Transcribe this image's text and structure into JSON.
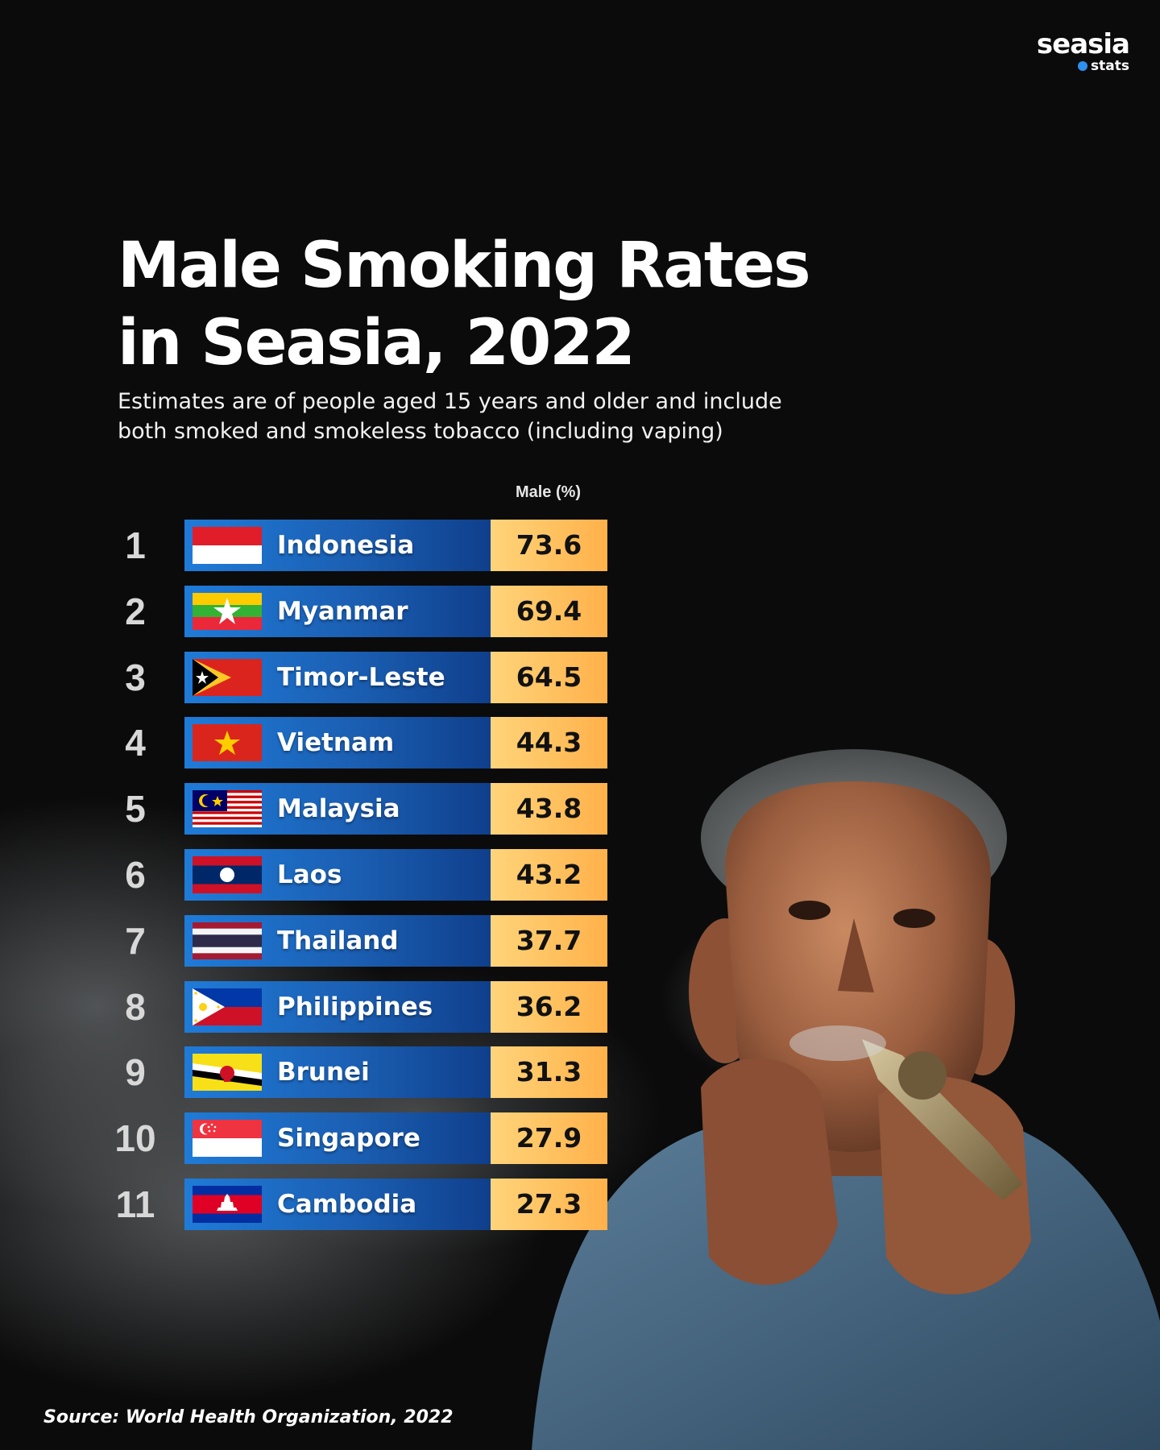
{
  "brand": {
    "name": "seasia",
    "sub": "stats"
  },
  "header": {
    "title_line1": "Male Smoking Rates",
    "title_line2": "in Seasia, 2022",
    "subtitle_line1": "Estimates are of people aged 15 years and older and include",
    "subtitle_line2": "both smoked and smokeless tobacco (including vaping)"
  },
  "source": "Source: World Health Organization, 2022",
  "chart_data": {
    "type": "bar",
    "title": "Male Smoking Rates in Seasia, 2022",
    "subtitle": "Estimates are of people aged 15 years and older and include both smoked and smokeless tobacco (including vaping)",
    "column_header": "Male (%)",
    "rows": [
      {
        "rank": "1",
        "country": "Indonesia",
        "value": "73.6",
        "flag": "indonesia-flag-icon"
      },
      {
        "rank": "2",
        "country": "Myanmar",
        "value": "69.4",
        "flag": "myanmar-flag-icon"
      },
      {
        "rank": "3",
        "country": "Timor-Leste",
        "value": "64.5",
        "flag": "timor-leste-flag-icon"
      },
      {
        "rank": "4",
        "country": "Vietnam",
        "value": "44.3",
        "flag": "vietnam-flag-icon"
      },
      {
        "rank": "5",
        "country": "Malaysia",
        "value": "43.8",
        "flag": "malaysia-flag-icon"
      },
      {
        "rank": "6",
        "country": "Laos",
        "value": "43.2",
        "flag": "laos-flag-icon"
      },
      {
        "rank": "7",
        "country": "Thailand",
        "value": "37.7",
        "flag": "thailand-flag-icon"
      },
      {
        "rank": "8",
        "country": "Philippines",
        "value": "36.2",
        "flag": "philippines-flag-icon"
      },
      {
        "rank": "9",
        "country": "Brunei",
        "value": "31.3",
        "flag": "brunei-flag-icon"
      },
      {
        "rank": "10",
        "country": "Singapore",
        "value": "27.9",
        "flag": "singapore-flag-icon"
      },
      {
        "rank": "11",
        "country": "Cambodia",
        "value": "27.3",
        "flag": "cambodia-flag-icon"
      }
    ]
  },
  "colors": {
    "background": "#0b0b0b",
    "bar_blue": "#1b5fb3",
    "value_orange": "#ffb14a",
    "text": "#ffffff"
  }
}
